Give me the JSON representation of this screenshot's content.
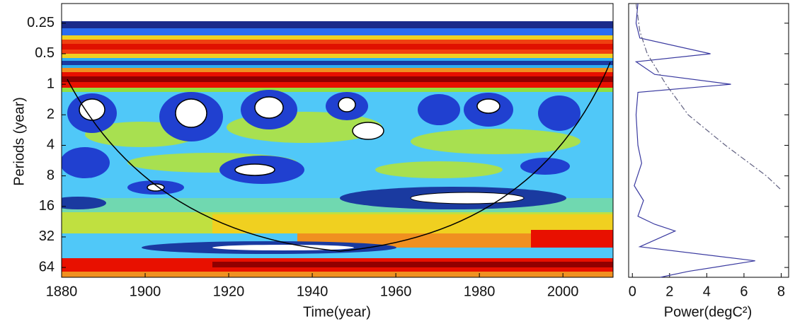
{
  "chart_data": [
    {
      "type": "contour",
      "xlabel": "Time(year)",
      "ylabel": "Periods (year)",
      "xlim": [
        1880,
        2012
      ],
      "xticks": [
        1880,
        1900,
        1920,
        1940,
        1960,
        1980,
        2000
      ],
      "ylim": [
        0.16,
        80
      ],
      "yticks": [
        0.25,
        0.5,
        1,
        2,
        4,
        8,
        16,
        32,
        64
      ],
      "log_y": true,
      "y_reversed": true
    },
    {
      "type": "line",
      "xlabel": "Power(degC²)",
      "xlim": [
        -0.2,
        8.4
      ],
      "xticks": [
        0,
        2,
        4,
        6,
        8
      ],
      "ylim": [
        0.16,
        80
      ],
      "log_y": true,
      "y_reversed": true,
      "series": [
        {
          "color": "#3a3aa0",
          "style": "solid",
          "periods": [
            0.16,
            0.25,
            0.35,
            0.5,
            0.6,
            0.8,
            1,
            1.2,
            2,
            4,
            6,
            10,
            14,
            20,
            24,
            28,
            40,
            55,
            70,
            80
          ],
          "values": [
            0.3,
            0.2,
            0.4,
            4.2,
            0.2,
            1.2,
            5.3,
            0.3,
            0.2,
            0.3,
            0.5,
            0.1,
            0.6,
            0.3,
            1.2,
            2.3,
            0.4,
            6.6,
            3,
            1.5
          ]
        },
        {
          "color": "#606080",
          "style": "dashed",
          "periods": [
            0.16,
            0.3,
            0.5,
            1,
            2,
            4,
            8,
            11
          ],
          "values": [
            0.2,
            0.4,
            0.8,
            1.8,
            3,
            5,
            7.2,
            8
          ]
        }
      ]
    }
  ]
}
